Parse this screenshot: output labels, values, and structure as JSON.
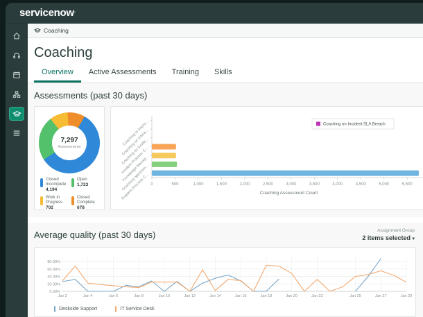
{
  "app": {
    "logo": "servicenow"
  },
  "sidebar": {
    "items": [
      {
        "icon": "home-icon",
        "active": false
      },
      {
        "icon": "headset-icon",
        "active": false
      },
      {
        "icon": "calendar-icon",
        "active": false
      },
      {
        "icon": "org-chart-icon",
        "active": false
      },
      {
        "icon": "graduation-cap-icon",
        "active": true
      },
      {
        "icon": "list-icon",
        "active": false
      }
    ]
  },
  "breadcrumb": {
    "icon": "graduation-cap-icon",
    "label": "Coaching"
  },
  "page": {
    "title": "Coaching"
  },
  "tabs": [
    {
      "label": "Overview",
      "active": true
    },
    {
      "label": "Active Assessments",
      "active": false
    },
    {
      "label": "Training",
      "active": false
    },
    {
      "label": "Skills",
      "active": false
    }
  ],
  "sections": {
    "assessments": {
      "title": "Assessments (past 30 days)"
    },
    "average_quality": {
      "title": "Average quality (past 30 days)",
      "assignment_group_label": "Assignment Group",
      "assignment_group_value": "2 items selected",
      "caret": "▾"
    }
  },
  "chart_data": [
    {
      "type": "pie",
      "subtype": "donut",
      "center_value": "7,297",
      "center_label": "Assessments",
      "start_angle_deg": 30,
      "segments": [
        {
          "label": "Closed Incomplete",
          "value": 4194,
          "display": "4,194",
          "color": "#2f88d8"
        },
        {
          "label": "Open",
          "value": 1723,
          "display": "1,723",
          "color": "#53c06b"
        },
        {
          "label": "Work in Progress",
          "value": 702,
          "display": "702",
          "color": "#f6bc33"
        },
        {
          "label": "Closed Complete",
          "value": 678,
          "display": "678",
          "color": "#ef8d2a"
        }
      ],
      "total": 7297
    },
    {
      "type": "bar",
      "orientation": "horizontal",
      "categories": [
        "Coaching to Impro...",
        "Coaching on Intera...",
        "Coaching on Incide...",
        "Incident Process: C...",
        "Knowledge Manag...",
        "Coaching opportun...",
        "Problem Process C..."
      ],
      "values": [
        0,
        0,
        0,
        520,
        520,
        540,
        5750
      ],
      "bar_colors": [
        "none",
        "none",
        "none",
        "#f8a558",
        "#f7c85c",
        "#85d07e",
        "#70b5e0"
      ],
      "xlabel": "Coaching Assessment Count",
      "xticks": [
        0,
        500,
        1000,
        1500,
        2000,
        2500,
        3000,
        3500,
        4000,
        4500,
        5000,
        5500
      ],
      "xtick_labels": [
        "0",
        "500",
        "1,000",
        "1,500",
        "2,000",
        "2,500",
        "3,000",
        "3,500",
        "4,000",
        "4,500",
        "5,000",
        "5,500"
      ],
      "xlim": [
        0,
        5900
      ],
      "legend": [
        {
          "label": "Coaching on Incident SLA Breach",
          "color": "#bb35b5"
        }
      ],
      "legend_position": "top-right"
    },
    {
      "type": "line",
      "x_days": [
        2,
        3,
        4,
        5,
        6,
        7,
        8,
        9,
        10,
        11,
        12,
        13,
        14,
        15,
        16,
        17,
        18,
        19,
        20,
        21,
        22,
        23,
        24,
        25,
        26,
        27,
        28,
        29
      ],
      "xtick_days": [
        2,
        4,
        6,
        8,
        10,
        12,
        14,
        16,
        18,
        20,
        22,
        25,
        27,
        29
      ],
      "xtick_labels": [
        "Jan 2",
        "Jan 4",
        "Jan 6",
        "Jan 8",
        "Jan 10",
        "Jan 12",
        "Jan 14",
        "Jan 16",
        "Jan 18",
        "Jan 20",
        "Jan 22",
        "Jan 25",
        "Jan 27",
        "Jan 29"
      ],
      "ytick_labels": [
        "0.00%",
        "20.00%",
        "40.00%",
        "60.00%",
        "80.00%"
      ],
      "yticks": [
        0,
        20,
        40,
        60,
        80
      ],
      "ylim": [
        0,
        95
      ],
      "grid": true,
      "legend_position": "bottom-left",
      "series": [
        {
          "name": "Deskside Support",
          "color": "#7ba7c9",
          "values": [
            26,
            32,
            0,
            0,
            0,
            16,
            12,
            28,
            0,
            27,
            0,
            22,
            35,
            44,
            28,
            0,
            0,
            33,
            null,
            null,
            null,
            null,
            null,
            0,
            40,
            88,
            null,
            null
          ]
        },
        {
          "name": "IT Service Desk",
          "color": "#f2aa72",
          "values": [
            28,
            68,
            22,
            18,
            15,
            12,
            10,
            25,
            25,
            25,
            0,
            58,
            2,
            32,
            29,
            0,
            70,
            68,
            48,
            0,
            32,
            0,
            12,
            40,
            45,
            55,
            43,
            25
          ]
        }
      ]
    }
  ],
  "colors": {
    "header_bg": "#2a3d3c",
    "active_nav_bg": "#0f8e6e",
    "accent_teal": "#0a7161",
    "section_bg": "#f7f8f7"
  }
}
